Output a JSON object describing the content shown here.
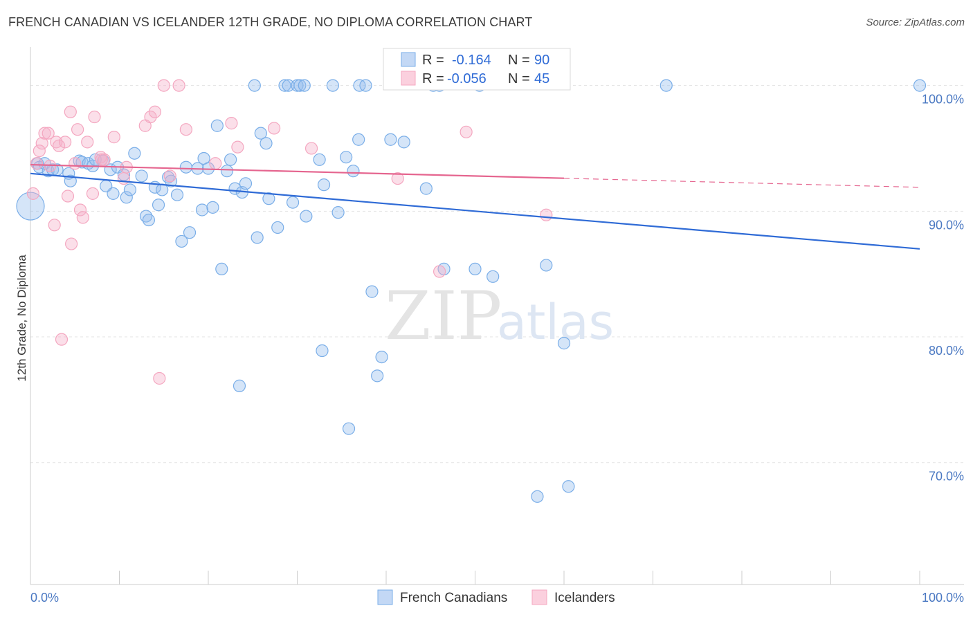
{
  "header": {
    "title": "FRENCH CANADIAN VS ICELANDER 12TH GRADE, NO DIPLOMA CORRELATION CHART",
    "source": "Source: ZipAtlas.com"
  },
  "watermark": {
    "zip": "ZIP",
    "atlas": "atlas"
  },
  "colors": {
    "blue": "#7aaee8",
    "blue_line": "#2f6bd6",
    "pink": "#f4a7c0",
    "pink_line": "#e5658f"
  },
  "legend": {
    "r_label": "R =",
    "n_label": "N =",
    "rows": [
      {
        "series": "French Canadians",
        "r": "-0.164",
        "n": "90"
      },
      {
        "series": "Icelanders",
        "r": "-0.056",
        "n": "45"
      }
    ]
  },
  "chart_data": {
    "type": "scatter",
    "title": "FRENCH CANADIAN VS ICELANDER 12TH GRADE, NO DIPLOMA CORRELATION CHART",
    "xlabel": "",
    "ylabel": "12th Grade, No Diploma",
    "xlim": [
      0,
      100
    ],
    "ylim": [
      60.3,
      103.5
    ],
    "x_tick_labels": [
      "0.0%",
      "100.0%"
    ],
    "y_ticks": [
      100,
      90,
      80,
      70
    ],
    "y_tick_labels": [
      "100.0%",
      "90.0%",
      "80.0%",
      "70.0%"
    ],
    "grid": true,
    "legend_position": "bottom-center",
    "series": [
      {
        "name": "French Canadians",
        "color": "#7aaee8",
        "trend": {
          "x": [
            0,
            100
          ],
          "y": [
            93.0,
            87.0
          ],
          "dashed_from": null
        },
        "points": [
          [
            0.0,
            90.4,
            2
          ],
          [
            0.8,
            93.8,
            1
          ],
          [
            1.0,
            93.5,
            1
          ],
          [
            1.6,
            93.8,
            1
          ],
          [
            2.0,
            93.2,
            1
          ],
          [
            2.5,
            93.3,
            1
          ],
          [
            3.0,
            93.3,
            1
          ],
          [
            4.3,
            93.0,
            1
          ],
          [
            4.5,
            92.4,
            1
          ],
          [
            5.5,
            94.0,
            1
          ],
          [
            5.8,
            93.9,
            1
          ],
          [
            6.5,
            93.8,
            1
          ],
          [
            7.0,
            93.6,
            1
          ],
          [
            7.3,
            94.1,
            1
          ],
          [
            8.2,
            94.0,
            1
          ],
          [
            8.5,
            92.0,
            1
          ],
          [
            9.0,
            93.3,
            1
          ],
          [
            9.3,
            91.4,
            1
          ],
          [
            9.8,
            93.5,
            1
          ],
          [
            10.5,
            92.9,
            1
          ],
          [
            10.8,
            91.1,
            1
          ],
          [
            11.2,
            91.7,
            1
          ],
          [
            11.7,
            94.6,
            1
          ],
          [
            12.5,
            92.8,
            1
          ],
          [
            13.0,
            89.6,
            1
          ],
          [
            13.3,
            89.3,
            1
          ],
          [
            14.0,
            91.9,
            1
          ],
          [
            14.4,
            90.5,
            1
          ],
          [
            14.8,
            91.7,
            1
          ],
          [
            15.5,
            92.7,
            1
          ],
          [
            15.8,
            92.4,
            1
          ],
          [
            16.5,
            91.3,
            1
          ],
          [
            17.0,
            87.6,
            1
          ],
          [
            17.5,
            93.5,
            1
          ],
          [
            17.9,
            88.3,
            1
          ],
          [
            18.8,
            93.4,
            1
          ],
          [
            19.3,
            90.1,
            1
          ],
          [
            19.5,
            94.2,
            1
          ],
          [
            20.0,
            93.4,
            1
          ],
          [
            20.5,
            90.3,
            1
          ],
          [
            21.0,
            96.8,
            1
          ],
          [
            21.5,
            85.4,
            1
          ],
          [
            22.1,
            93.2,
            1
          ],
          [
            22.5,
            94.1,
            1
          ],
          [
            23.0,
            91.8,
            1
          ],
          [
            23.5,
            76.1,
            1
          ],
          [
            23.8,
            91.5,
            1
          ],
          [
            24.2,
            92.2,
            1
          ],
          [
            25.2,
            100.0,
            1
          ],
          [
            25.5,
            87.9,
            1
          ],
          [
            25.9,
            96.2,
            1
          ],
          [
            26.5,
            95.4,
            1
          ],
          [
            26.8,
            91.0,
            1
          ],
          [
            27.8,
            88.7,
            1
          ],
          [
            28.6,
            100.0,
            1
          ],
          [
            29.0,
            100.0,
            1
          ],
          [
            29.5,
            90.7,
            1
          ],
          [
            30.0,
            100.0,
            1
          ],
          [
            30.3,
            100.0,
            1
          ],
          [
            30.8,
            100.0,
            1
          ],
          [
            31.0,
            89.6,
            1
          ],
          [
            32.5,
            94.1,
            1
          ],
          [
            32.8,
            78.9,
            1
          ],
          [
            33.0,
            92.1,
            1
          ],
          [
            34.0,
            100.0,
            1
          ],
          [
            34.6,
            89.9,
            1
          ],
          [
            35.5,
            94.3,
            1
          ],
          [
            35.8,
            72.7,
            1
          ],
          [
            36.3,
            93.2,
            1
          ],
          [
            36.9,
            95.7,
            1
          ],
          [
            37.0,
            100.0,
            1
          ],
          [
            37.7,
            100.0,
            1
          ],
          [
            38.4,
            83.6,
            1
          ],
          [
            39.0,
            76.9,
            1
          ],
          [
            39.5,
            78.4,
            1
          ],
          [
            40.5,
            95.7,
            1
          ],
          [
            42.0,
            95.5,
            1
          ],
          [
            44.5,
            91.8,
            1
          ],
          [
            45.3,
            100.0,
            1
          ],
          [
            46.0,
            100.0,
            1
          ],
          [
            46.5,
            85.4,
            1
          ],
          [
            50.0,
            85.4,
            1
          ],
          [
            52.0,
            84.8,
            1
          ],
          [
            57.0,
            67.3,
            1
          ],
          [
            58.0,
            85.7,
            1
          ],
          [
            60.0,
            79.5,
            1
          ],
          [
            60.5,
            68.1,
            1
          ],
          [
            71.5,
            100.0,
            1
          ],
          [
            100.0,
            100.0,
            1
          ],
          [
            50.5,
            100.0,
            1
          ]
        ]
      },
      {
        "name": "Icelanders",
        "color": "#f4a7c0",
        "trend": {
          "x": [
            0,
            100
          ],
          "y": [
            93.7,
            91.9
          ],
          "dashed_from": 60
        },
        "points": [
          [
            0.3,
            91.4,
            1
          ],
          [
            0.7,
            93.8,
            1
          ],
          [
            1.3,
            95.4,
            1
          ],
          [
            1.6,
            96.2,
            1
          ],
          [
            2.2,
            93.6,
            1
          ],
          [
            2.7,
            88.9,
            1
          ],
          [
            2.9,
            95.5,
            1
          ],
          [
            3.2,
            95.2,
            1
          ],
          [
            3.5,
            79.8,
            1
          ],
          [
            3.9,
            95.5,
            1
          ],
          [
            4.2,
            91.2,
            1
          ],
          [
            4.5,
            97.9,
            1
          ],
          [
            4.6,
            87.4,
            1
          ],
          [
            5.0,
            93.8,
            1
          ],
          [
            5.3,
            96.5,
            1
          ],
          [
            5.6,
            90.1,
            1
          ],
          [
            5.9,
            89.5,
            1
          ],
          [
            6.4,
            95.5,
            1
          ],
          [
            7.0,
            91.4,
            1
          ],
          [
            7.2,
            97.5,
            1
          ],
          [
            7.9,
            94.3,
            1
          ],
          [
            8.3,
            94.1,
            1
          ],
          [
            9.4,
            95.9,
            1
          ],
          [
            10.5,
            92.6,
            1
          ],
          [
            10.8,
            93.5,
            1
          ],
          [
            12.9,
            96.8,
            1
          ],
          [
            13.5,
            97.5,
            1
          ],
          [
            14.0,
            97.9,
            1
          ],
          [
            14.5,
            76.7,
            1
          ],
          [
            15.0,
            100.0,
            1
          ],
          [
            16.7,
            100.0,
            1
          ],
          [
            15.7,
            92.8,
            1
          ],
          [
            17.5,
            96.5,
            1
          ],
          [
            20.8,
            93.8,
            1
          ],
          [
            22.6,
            97.0,
            1
          ],
          [
            23.3,
            95.1,
            1
          ],
          [
            27.4,
            96.6,
            1
          ],
          [
            31.6,
            95.0,
            1
          ],
          [
            41.3,
            92.6,
            1
          ],
          [
            46.0,
            85.2,
            1
          ],
          [
            49.0,
            96.3,
            1
          ],
          [
            58.0,
            89.7,
            1
          ],
          [
            8.0,
            94.1,
            1
          ],
          [
            1.0,
            94.8,
            1
          ],
          [
            2.0,
            96.2,
            1
          ]
        ]
      }
    ]
  }
}
